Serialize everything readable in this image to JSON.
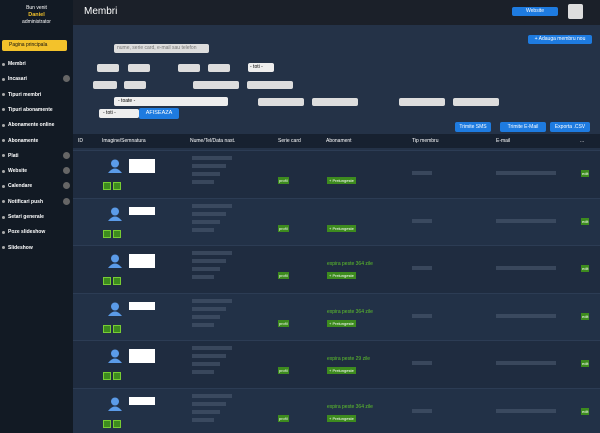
{
  "sidebar": {
    "greeting": "Bun venit",
    "user": "Daniel",
    "role": "administrator",
    "home": "Pagina principala",
    "menu": [
      {
        "label": "Membri",
        "expandable": false
      },
      {
        "label": "Incasari",
        "expandable": true
      },
      {
        "label": "Tipuri membri",
        "expandable": false
      },
      {
        "label": "Tipuri abonamente",
        "expandable": false
      },
      {
        "label": "Abonamente online",
        "expandable": false
      },
      {
        "label": "Abonamente",
        "expandable": false
      },
      {
        "label": "Plati",
        "expandable": true
      },
      {
        "label": "Website",
        "expandable": true
      },
      {
        "label": "Calendare",
        "expandable": true
      },
      {
        "label": "Notificari push",
        "expandable": true
      },
      {
        "label": "Setari generale",
        "expandable": false
      },
      {
        "label": "Poze slideshow",
        "expandable": false
      },
      {
        "label": "Slideshow",
        "expandable": false
      }
    ]
  },
  "topbar": {
    "title": "Membri",
    "website_button": "Website"
  },
  "actions": {
    "add_member": "+ Adauga membru nou",
    "send_sms": "Trimite SMS",
    "send_email": "Trimite E-Mail",
    "export": "Exporta .CSV"
  },
  "filters": {
    "search_placeholder": "nume, serie card, e-mail sau telefon",
    "select_all_m": "- toti -",
    "select_all_f": "- toate -",
    "select_all_m2": "- toti -",
    "show_button": "AFISEAZA"
  },
  "table": {
    "headers": [
      "ID",
      "Imagine/Semnatura",
      "Nume/Tel/Data nast.",
      "Serie card",
      "Abonament",
      "Tip membru",
      "E-mail",
      "..."
    ],
    "rows": [
      {
        "signature": true,
        "card": "profil",
        "expiry": null,
        "extend": "+ Prelungeste",
        "action": "edit"
      },
      {
        "signature": false,
        "card": "profil",
        "expiry": null,
        "extend": "+ Prelungeste",
        "action": "edit"
      },
      {
        "signature": true,
        "card": "profil",
        "expiry": "expira peste 364 zile",
        "extend": "+ Prelungeste",
        "action": "edit"
      },
      {
        "signature": false,
        "card": "profil",
        "expiry": "expira peste 364 zile",
        "extend": "+ Prelungeste",
        "action": "edit"
      },
      {
        "signature": true,
        "card": "profil",
        "expiry": "expira peste 29 zile",
        "extend": "+ Prelungeste",
        "action": "edit"
      },
      {
        "signature": false,
        "card": "profil",
        "expiry": "expira peste 364 zile",
        "extend": "+ Prelungeste",
        "action": "edit"
      }
    ]
  }
}
